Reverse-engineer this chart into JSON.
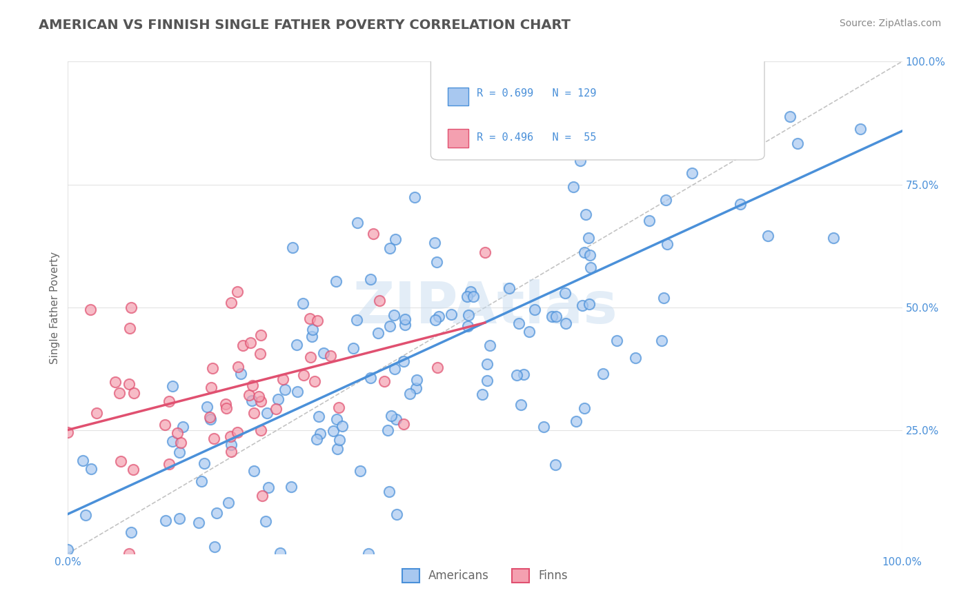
{
  "title": "AMERICAN VS FINNISH SINGLE FATHER POVERTY CORRELATION CHART",
  "source": "Source: ZipAtlas.com",
  "ylabel": "Single Father Poverty",
  "xlabel_ticks": [
    "0.0%",
    "100.0%"
  ],
  "ylabel_ticks": [
    "25.0%",
    "50.0%",
    "75.0%",
    "100.0%"
  ],
  "americans": {
    "R": 0.699,
    "N": 129,
    "color": "#a8c8f0",
    "line_color": "#4a90d9",
    "label": "Americans"
  },
  "finns": {
    "R": 0.496,
    "N": 55,
    "color": "#f4a0b0",
    "line_color": "#e05070",
    "label": "Finns"
  },
  "watermark": "ZIPAtlas",
  "background_color": "#ffffff",
  "grid_color": "#dddddd",
  "title_color": "#333333",
  "axis_tick_color": "#4a90d9"
}
